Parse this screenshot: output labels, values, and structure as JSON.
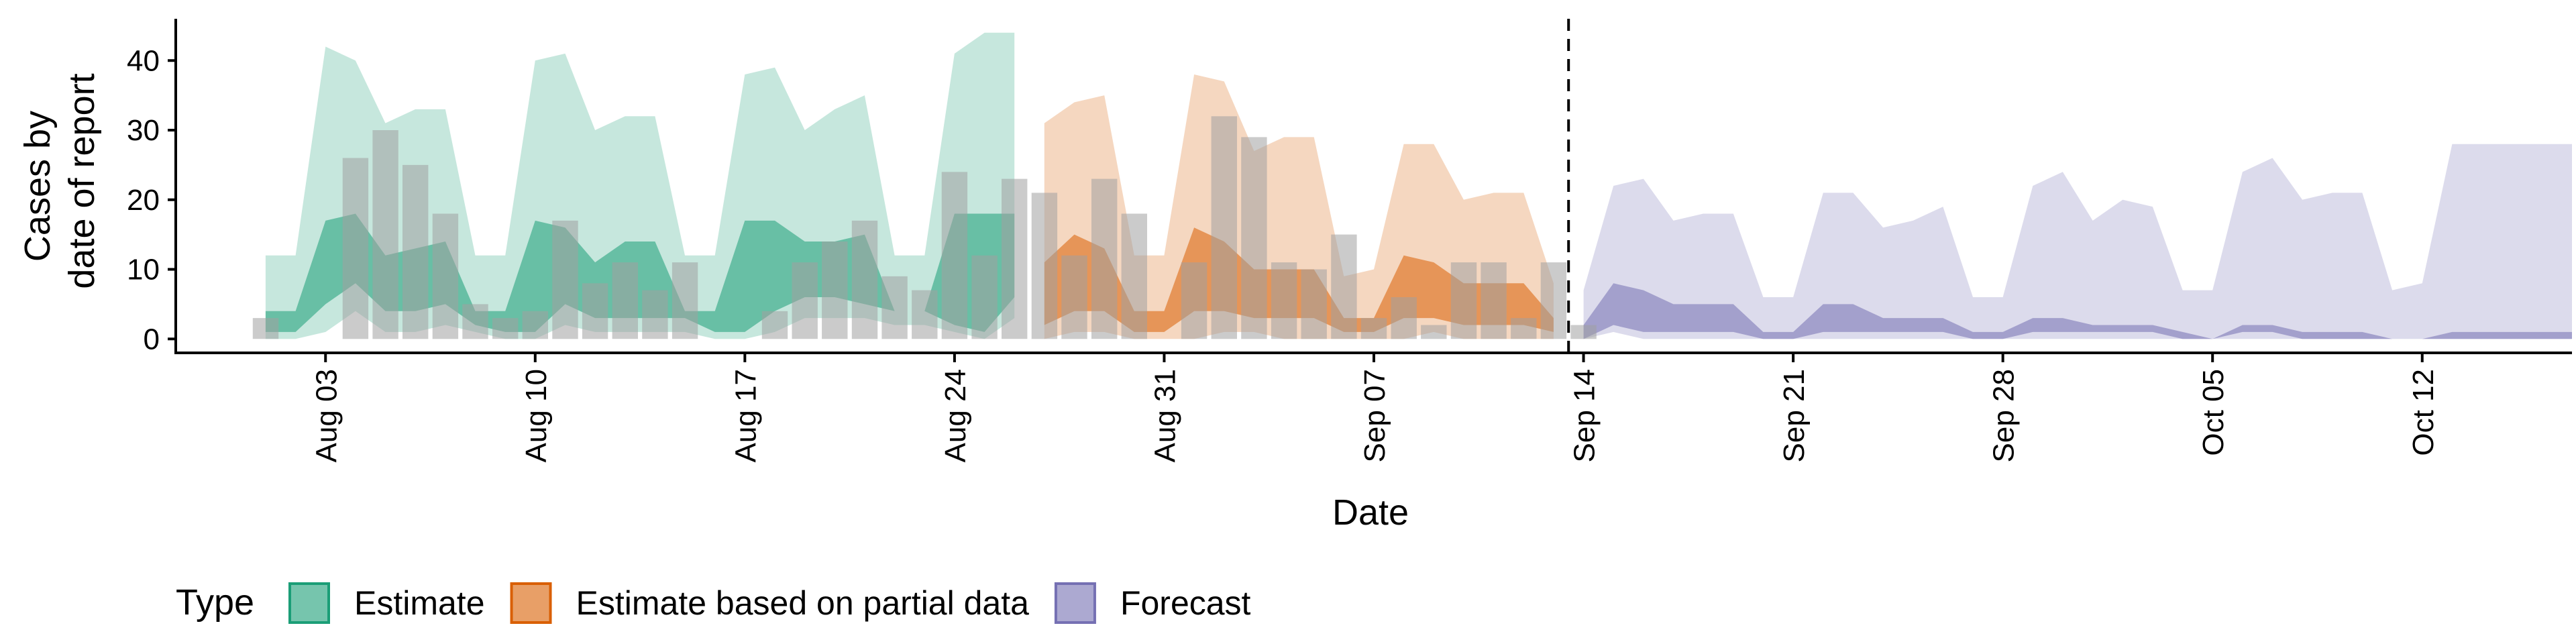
{
  "chart_data": {
    "type": "bar",
    "xlabel": "Date",
    "ylabel": [
      "Cases by",
      "date of report"
    ],
    "ylim": [
      -2,
      46
    ],
    "yticks": [
      0,
      10,
      20,
      30,
      40
    ],
    "xdomain": [
      "2020-07-29",
      "2020-10-17"
    ],
    "xticks": [
      {
        "date": "2020-08-03",
        "label": "Aug 03"
      },
      {
        "date": "2020-08-10",
        "label": "Aug 10"
      },
      {
        "date": "2020-08-17",
        "label": "Aug 17"
      },
      {
        "date": "2020-08-24",
        "label": "Aug 24"
      },
      {
        "date": "2020-08-31",
        "label": "Aug 31"
      },
      {
        "date": "2020-09-07",
        "label": "Sep 07"
      },
      {
        "date": "2020-09-14",
        "label": "Sep 14"
      },
      {
        "date": "2020-09-21",
        "label": "Sep 21"
      },
      {
        "date": "2020-09-28",
        "label": "Sep 28"
      },
      {
        "date": "2020-10-05",
        "label": "Oct 05"
      },
      {
        "date": "2020-10-12",
        "label": "Oct 12"
      }
    ],
    "forecast_date": "2020-09-13",
    "legend_title": "Type",
    "legend_position": "bottom",
    "colors": {
      "Estimate": "#1b9e77",
      "Estimate based on partial data": "#d95f02",
      "Forecast": "#7570b3",
      "bars": "#a0a0a0"
    },
    "observed_cases": {
      "start": "2020-08-01",
      "values": [
        3,
        0,
        0,
        26,
        30,
        25,
        18,
        5,
        3,
        4,
        17,
        8,
        11,
        7,
        11,
        0,
        0,
        4,
        11,
        14,
        17,
        9,
        7,
        24,
        12,
        23,
        21,
        12,
        23,
        18,
        0,
        11,
        32,
        29,
        11,
        10,
        15,
        3,
        6,
        2,
        11,
        11,
        3,
        11,
        2
      ]
    },
    "series": [
      {
        "name": "Estimate",
        "start": "2020-08-01",
        "lower_outer": [
          0,
          0,
          1,
          4,
          1,
          1,
          2,
          1,
          0,
          0,
          2,
          1,
          1,
          1,
          1,
          0,
          0,
          1,
          3,
          3,
          3,
          2,
          2,
          1,
          0,
          3
        ],
        "upper_outer": [
          12,
          12,
          42,
          40,
          31,
          33,
          33,
          12,
          12,
          40,
          41,
          30,
          32,
          32,
          12,
          12,
          38,
          39,
          30,
          33,
          35,
          12,
          12,
          41,
          44,
          44
        ],
        "lower_inner": [
          1,
          1,
          5,
          8,
          4,
          4,
          5,
          2,
          1,
          1,
          5,
          3,
          3,
          3,
          3,
          1,
          1,
          4,
          6,
          6,
          5,
          4,
          4,
          2,
          1,
          6
        ],
        "upper_inner": [
          4,
          4,
          17,
          18,
          12,
          13,
          14,
          4,
          4,
          17,
          16,
          11,
          14,
          14,
          4,
          4,
          17,
          17,
          14,
          14,
          15,
          4,
          4,
          18,
          18,
          18
        ]
      },
      {
        "name": "Estimate based on partial data",
        "start": "2020-08-27",
        "lower_outer": [
          0,
          1,
          1,
          0,
          0,
          0,
          1,
          1,
          0,
          0,
          0,
          0,
          0,
          1,
          0,
          0,
          0,
          0
        ],
        "upper_outer": [
          31,
          34,
          35,
          12,
          12,
          38,
          37,
          27,
          29,
          29,
          9,
          10,
          28,
          28,
          20,
          21,
          21,
          8
        ],
        "lower_inner": [
          2,
          4,
          4,
          1,
          1,
          4,
          4,
          3,
          3,
          3,
          1,
          1,
          3,
          3,
          2,
          2,
          2,
          1
        ],
        "upper_inner": [
          11,
          15,
          13,
          4,
          4,
          16,
          14,
          10,
          10,
          10,
          3,
          3,
          12,
          11,
          8,
          8,
          8,
          3
        ]
      },
      {
        "name": "Forecast",
        "start": "2020-09-14",
        "lower_outer": [
          0,
          1,
          0,
          0,
          0,
          0,
          0,
          0,
          0,
          0,
          0,
          0,
          0,
          0,
          0,
          0,
          0,
          0,
          0,
          0,
          0,
          0,
          0,
          0,
          0,
          0,
          0,
          0,
          0,
          0,
          0,
          0,
          0,
          0
        ],
        "upper_outer": [
          7,
          22,
          23,
          17,
          18,
          18,
          6,
          6,
          21,
          21,
          16,
          17,
          19,
          6,
          6,
          22,
          24,
          17,
          20,
          19,
          7,
          7,
          24,
          26,
          20,
          21,
          21,
          7,
          8,
          28,
          28,
          28,
          28,
          28
        ],
        "lower_inner": [
          0,
          2,
          1,
          1,
          1,
          1,
          0,
          0,
          1,
          1,
          1,
          1,
          1,
          0,
          0,
          1,
          1,
          1,
          1,
          1,
          0,
          0,
          1,
          1,
          0,
          0,
          0,
          0,
          0,
          0,
          0,
          0,
          0,
          0
        ],
        "upper_inner": [
          2,
          8,
          7,
          5,
          5,
          5,
          1,
          1,
          5,
          5,
          3,
          3,
          3,
          1,
          1,
          3,
          3,
          2,
          2,
          2,
          1,
          0,
          2,
          2,
          1,
          1,
          1,
          0,
          0,
          1,
          1,
          1,
          1,
          1
        ]
      }
    ]
  }
}
